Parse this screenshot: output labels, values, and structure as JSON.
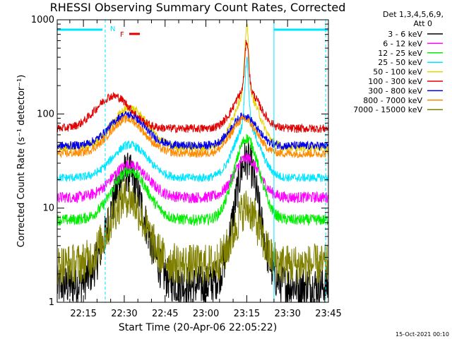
{
  "chart_data": {
    "type": "line",
    "title": "RHESSI Observing Summary Count Rates, Corrected",
    "xlabel": "Start Time (20-Apr-06 22:05:22)",
    "ylabel": "Corrected Count Rate (s⁻¹ detector⁻¹)",
    "y_scale": "log",
    "ylim": [
      1,
      1000
    ],
    "xlim": [
      "22:05:22",
      "23:45"
    ],
    "grid": false,
    "x_tick_labels": [
      "22:15",
      "22:30",
      "22:45",
      "23:00",
      "23:15",
      "23:30",
      "23:45"
    ],
    "y_tick_labels": [
      "1",
      "10",
      "100",
      "1000"
    ],
    "legend_header": [
      "Det 1,3,4,5,6,9,",
      "Att 0"
    ],
    "legend_position": "right",
    "series": [
      {
        "name": "3 - 6 keV",
        "color": "#000000",
        "baseline": 1.5,
        "peaks": [
          {
            "time": "22:31",
            "value": 24
          },
          {
            "time": "23:15",
            "value": 33
          }
        ]
      },
      {
        "name": "6 - 12 keV",
        "color": "#ff00ff",
        "baseline": 13,
        "peaks": [
          {
            "time": "22:32",
            "value": 29
          },
          {
            "time": "23:15",
            "value": 34
          }
        ]
      },
      {
        "name": "12 - 25 keV",
        "color": "#00ee00",
        "baseline": 7.5,
        "peaks": [
          {
            "time": "22:32",
            "value": 25
          },
          {
            "time": "23:15",
            "value": 55
          }
        ]
      },
      {
        "name": "25 - 50 keV",
        "color": "#00e5ff",
        "baseline": 21,
        "peaks": [
          {
            "time": "22:32",
            "value": 47
          },
          {
            "time": "23:15",
            "value": 380
          }
        ]
      },
      {
        "name": "50 - 100 keV",
        "color": "#e6d200",
        "baseline": 44,
        "peaks": [
          {
            "time": "22:32",
            "value": 115
          },
          {
            "time": "23:15",
            "value": 880
          }
        ]
      },
      {
        "name": "100 - 300 keV",
        "color": "#e00000",
        "baseline": 70,
        "peaks": [
          {
            "time": "22:26",
            "value": 155
          },
          {
            "time": "23:15",
            "value": 600
          }
        ]
      },
      {
        "name": "300 - 800 keV",
        "color": "#0000ee",
        "baseline": 46,
        "peaks": [
          {
            "time": "22:31",
            "value": 98
          },
          {
            "time": "23:14",
            "value": 95
          }
        ]
      },
      {
        "name": "800 - 7000 keV",
        "color": "#ff8c00",
        "baseline": 38,
        "peaks": [
          {
            "time": "22:31",
            "value": 88
          },
          {
            "time": "23:14",
            "value": 88
          }
        ]
      },
      {
        "name": "7000 - 15000 keV",
        "color": "#808000",
        "baseline": 2.5,
        "peaks": [
          {
            "time": "22:31",
            "value": 13
          },
          {
            "time": "23:15",
            "value": 10
          }
        ]
      }
    ],
    "annotations": [
      {
        "label": "N",
        "color": "#00e5ff"
      },
      {
        "label": "F",
        "color": "#e00000"
      }
    ],
    "timestamp": "15-Oct-2021 00:10"
  }
}
